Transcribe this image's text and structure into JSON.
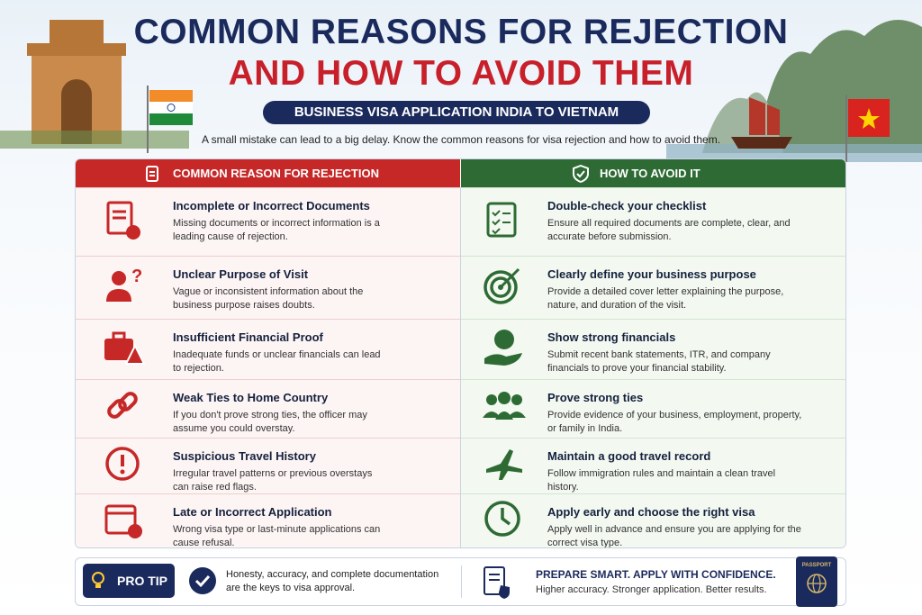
{
  "header": {
    "title_line1": "COMMON REASONS FOR REJECTION",
    "title_line2": "AND HOW TO AVOID THEM",
    "subtitle": "BUSINESS VISA APPLICATION INDIA TO VIETNAM",
    "intro": "A small mistake can lead to a big delay. Know the common reasons for visa rejection and how to avoid them."
  },
  "table": {
    "left_header": "COMMON REASON FOR REJECTION",
    "right_header": "HOW TO AVOID IT",
    "rows": [
      {
        "reason_title": "Incomplete or Incorrect Documents",
        "reason_text": "Missing documents or incorrect information is a leading cause of rejection.",
        "avoid_title": "Double-check your checklist",
        "avoid_text": "Ensure all required documents are complete, clear, and accurate before submission."
      },
      {
        "reason_title": "Unclear Purpose of Visit",
        "reason_text": "Vague or inconsistent information about the business purpose raises doubts.",
        "avoid_title": "Clearly define your business purpose",
        "avoid_text": "Provide a detailed cover letter explaining the purpose, nature, and duration of the visit."
      },
      {
        "reason_title": "Insufficient Financial Proof",
        "reason_text": "Inadequate funds or unclear financials can lead to rejection.",
        "avoid_title": "Show strong financials",
        "avoid_text": "Submit recent bank statements, ITR, and company financials to prove your financial stability."
      },
      {
        "reason_title": "Weak Ties to Home Country",
        "reason_text": "If you don't prove strong ties, the officer may assume you could overstay.",
        "avoid_title": "Prove strong ties",
        "avoid_text": "Provide evidence of your business, employment, property, or family in India."
      },
      {
        "reason_title": "Suspicious Travel History",
        "reason_text": "Irregular travel patterns or previous overstays can raise red flags.",
        "avoid_title": "Maintain a good travel record",
        "avoid_text": "Follow immigration rules and maintain a clean travel history."
      },
      {
        "reason_title": "Late or Incorrect Application",
        "reason_text": "Wrong visa type or last-minute applications can cause refusal.",
        "avoid_title": "Apply early and choose the right visa",
        "avoid_text": "Apply well in advance and ensure you are applying for the correct visa type."
      }
    ]
  },
  "footer": {
    "pro_tip_label": "PRO TIP",
    "pro_tip_text": "Honesty, accuracy, and complete documentation are the keys to visa approval.",
    "cta_title": "PREPARE SMART. APPLY WITH CONFIDENCE.",
    "cta_text": "Higher accuracy. Stronger application. Better results.",
    "passport_label": "PASSPORT"
  }
}
